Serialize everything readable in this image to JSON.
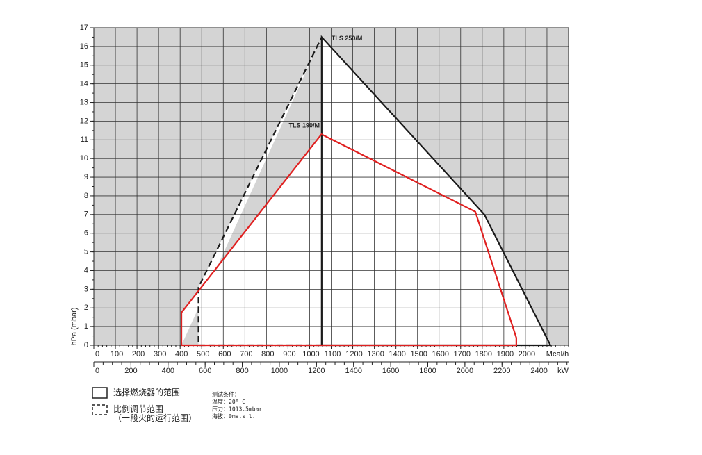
{
  "chart_data": {
    "type": "line",
    "ylabel": "hPa (mbar)",
    "xunit": "Mcal/h",
    "x2unit": "kW",
    "xlim": [
      0,
      2200
    ],
    "ylim": [
      0,
      17
    ],
    "xticks": [
      0,
      100,
      200,
      300,
      400,
      500,
      600,
      700,
      800,
      900,
      1000,
      1100,
      1200,
      1300,
      1400,
      1500,
      1600,
      1700,
      1800,
      1900,
      2000
    ],
    "yticks": [
      0,
      1,
      2,
      3,
      4,
      5,
      6,
      7,
      8,
      9,
      10,
      11,
      12,
      13,
      14,
      15,
      16,
      17
    ],
    "x_grid_step": 100,
    "x_minor_step": 20,
    "y_minor_step": 0.5,
    "x2ticks": [
      0,
      200,
      400,
      600,
      800,
      1000,
      1200,
      1400,
      1600,
      1800,
      2000,
      2200,
      2400
    ],
    "x2_per_x": 1.163,
    "x2_minor_step": 50,
    "grid": true,
    "background": "#d4d4d4",
    "range_fill": "#ffffff",
    "series": [
      {
        "name": "TLS 250/M",
        "color": "#1a1a1a",
        "style": "solid",
        "label_side": "right",
        "x": [
          1056,
          1056,
          1810,
          2116,
          1056
        ],
        "values": [
          0,
          16.5,
          7,
          0,
          0
        ]
      },
      {
        "color": "#1a1a1a",
        "style": "dashed",
        "x": [
          1056,
          485,
          485,
          1056
        ],
        "values": [
          0,
          0,
          3.1,
          16.5
        ]
      },
      {
        "name": "TLS 190/M",
        "color": "#e02020",
        "style": "solid",
        "label_side": "left",
        "x": [
          406,
          406,
          1055,
          1768,
          1958,
          1958,
          406
        ],
        "values": [
          0,
          1.75,
          11.3,
          7.15,
          0.4,
          0,
          0
        ]
      }
    ]
  },
  "legend": {
    "burner_range": "选择燃烧器的范围",
    "modulation_range": "比例调节范围",
    "modulation_note": "（一段火的运行范围）"
  },
  "notes": [
    "测试条件：",
    "温度：20° C",
    "压力：1013.5mbar",
    "海拔：0ma.s.l."
  ]
}
